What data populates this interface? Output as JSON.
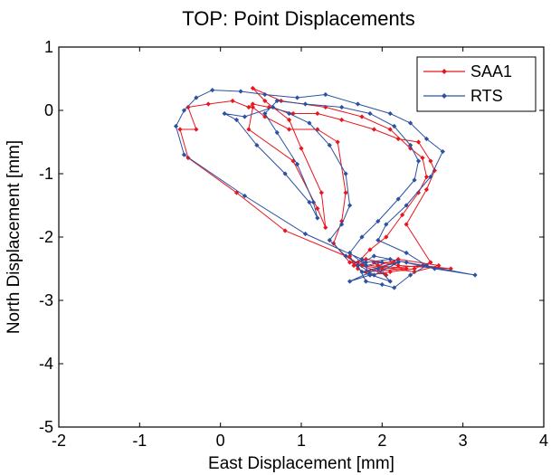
{
  "chart_data": {
    "type": "line",
    "title": "TOP: Point Displacements",
    "xlabel": "East Displacement [mm]",
    "ylabel": "North Displacement [mm]",
    "xlim": [
      -2,
      4
    ],
    "ylim": [
      -5,
      1
    ],
    "xticks": [
      "-2",
      "-1",
      "0",
      "1",
      "2",
      "3",
      "4"
    ],
    "yticks": [
      "-5",
      "-4",
      "-3",
      "-2",
      "-1",
      "0",
      "1"
    ],
    "grid": false,
    "legend_position": "top-right",
    "series": [
      {
        "name": "SAA1",
        "color": "#e8161e",
        "marker": "diamond",
        "points": [
          [
            1.75,
            -2.45
          ],
          [
            2.0,
            -2.5
          ],
          [
            2.5,
            -2.45
          ],
          [
            2.85,
            -2.5
          ],
          [
            2.2,
            -2.45
          ],
          [
            1.8,
            -2.35
          ],
          [
            1.65,
            -2.45
          ],
          [
            1.6,
            -2.3
          ],
          [
            1.7,
            -2.5
          ],
          [
            1.85,
            -2.6
          ],
          [
            2.1,
            -2.55
          ],
          [
            2.4,
            -2.5
          ],
          [
            2.6,
            -2.4
          ],
          [
            2.3,
            -1.8
          ],
          [
            2.55,
            -1.25
          ],
          [
            2.65,
            -0.95
          ],
          [
            2.6,
            -0.8
          ],
          [
            2.45,
            -0.5
          ],
          [
            2.2,
            -0.45
          ],
          [
            1.9,
            -0.3
          ],
          [
            1.5,
            -0.15
          ],
          [
            1.2,
            -0.05
          ],
          [
            0.9,
            -0.05
          ],
          [
            0.6,
            0.05
          ],
          [
            0.4,
            0.1
          ],
          [
            0.35,
            0.05
          ],
          [
            0.15,
            0.15
          ],
          [
            -0.15,
            0.1
          ],
          [
            -0.4,
            0.05
          ],
          [
            -0.3,
            -0.3
          ],
          [
            -0.5,
            -0.3
          ],
          [
            -0.4,
            -0.75
          ],
          [
            0.2,
            -1.3
          ],
          [
            0.8,
            -1.9
          ],
          [
            1.55,
            -2.3
          ],
          [
            1.75,
            -2.45
          ],
          [
            2.05,
            -2.6
          ],
          [
            1.9,
            -2.4
          ],
          [
            2.15,
            -2.4
          ],
          [
            1.8,
            -2.55
          ],
          [
            2.3,
            -2.5
          ],
          [
            1.95,
            -2.45
          ],
          [
            2.2,
            -2.35
          ],
          [
            2.7,
            -2.45
          ],
          [
            2.4,
            -2.55
          ],
          [
            1.6,
            -2.4
          ],
          [
            1.4,
            -2.1
          ],
          [
            1.5,
            -1.75
          ],
          [
            1.55,
            -1.3
          ],
          [
            1.45,
            -0.5
          ],
          [
            1.2,
            -0.3
          ],
          [
            0.85,
            -0.3
          ],
          [
            0.55,
            -0.1
          ],
          [
            0.4,
            0.05
          ],
          [
            0.35,
            -0.3
          ],
          [
            0.9,
            -0.8
          ],
          [
            1.2,
            -1.55
          ],
          [
            1.3,
            -1.85
          ],
          [
            1.25,
            -1.3
          ],
          [
            1.0,
            -0.6
          ],
          [
            0.85,
            -0.15
          ],
          [
            0.55,
            0.15
          ],
          [
            0.4,
            0.35
          ],
          [
            0.75,
            0.15
          ],
          [
            1.3,
            0.05
          ],
          [
            1.75,
            -0.1
          ],
          [
            2.1,
            -0.3
          ],
          [
            2.35,
            -0.6
          ],
          [
            2.5,
            -0.75
          ],
          [
            2.55,
            -1.05
          ],
          [
            2.45,
            -1.3
          ],
          [
            2.25,
            -1.65
          ],
          [
            2.05,
            -2.0
          ],
          [
            1.85,
            -2.2
          ],
          [
            1.7,
            -2.4
          ]
        ]
      },
      {
        "name": "RTS",
        "color": "#2c51a2",
        "marker": "diamond",
        "points": [
          [
            1.8,
            -2.4
          ],
          [
            2.1,
            -2.35
          ],
          [
            2.65,
            -2.5
          ],
          [
            3.15,
            -2.6
          ],
          [
            2.3,
            -2.4
          ],
          [
            1.9,
            -2.3
          ],
          [
            1.7,
            -2.45
          ],
          [
            1.8,
            -2.7
          ],
          [
            2.0,
            -2.75
          ],
          [
            2.15,
            -2.8
          ],
          [
            2.35,
            -2.6
          ],
          [
            2.55,
            -2.45
          ],
          [
            2.3,
            -2.25
          ],
          [
            1.95,
            -2.05
          ],
          [
            2.05,
            -1.8
          ],
          [
            2.3,
            -1.5
          ],
          [
            2.6,
            -1.05
          ],
          [
            2.75,
            -0.65
          ],
          [
            2.55,
            -0.45
          ],
          [
            2.35,
            -0.2
          ],
          [
            2.1,
            -0.05
          ],
          [
            1.7,
            0.1
          ],
          [
            1.3,
            0.25
          ],
          [
            0.95,
            0.2
          ],
          [
            0.55,
            0.25
          ],
          [
            0.25,
            0.3
          ],
          [
            -0.1,
            0.32
          ],
          [
            -0.3,
            0.2
          ],
          [
            -0.45,
            0.0
          ],
          [
            -0.55,
            -0.25
          ],
          [
            -0.45,
            -0.7
          ],
          [
            0.3,
            -1.35
          ],
          [
            1.05,
            -1.95
          ],
          [
            1.75,
            -2.35
          ],
          [
            1.85,
            -2.6
          ],
          [
            1.6,
            -2.7
          ],
          [
            1.95,
            -2.5
          ],
          [
            2.1,
            -2.7
          ],
          [
            1.75,
            -2.55
          ],
          [
            2.2,
            -2.4
          ],
          [
            1.9,
            -2.6
          ],
          [
            1.55,
            -2.3
          ],
          [
            1.35,
            -2.05
          ],
          [
            1.5,
            -1.8
          ],
          [
            1.6,
            -1.5
          ],
          [
            1.55,
            -1.0
          ],
          [
            1.35,
            -0.55
          ],
          [
            1.1,
            -0.2
          ],
          [
            0.85,
            -0.05
          ],
          [
            0.65,
            0.05
          ],
          [
            0.3,
            -0.1
          ],
          [
            0.05,
            -0.05
          ],
          [
            0.2,
            -0.15
          ],
          [
            0.45,
            -0.55
          ],
          [
            0.8,
            -1.0
          ],
          [
            1.1,
            -1.45
          ],
          [
            1.2,
            -1.7
          ],
          [
            1.15,
            -1.45
          ],
          [
            0.95,
            -0.85
          ],
          [
            0.7,
            -0.35
          ],
          [
            0.55,
            -0.05
          ],
          [
            0.7,
            0.15
          ],
          [
            1.05,
            0.1
          ],
          [
            1.5,
            0.05
          ],
          [
            1.85,
            -0.05
          ],
          [
            2.15,
            -0.25
          ],
          [
            2.35,
            -0.55
          ],
          [
            2.45,
            -0.8
          ],
          [
            2.4,
            -1.1
          ],
          [
            2.2,
            -1.4
          ],
          [
            1.95,
            -1.75
          ],
          [
            1.75,
            -2.0
          ],
          [
            1.6,
            -2.25
          ],
          [
            1.8,
            -2.45
          ],
          [
            2.0,
            -2.4
          ]
        ]
      }
    ]
  }
}
